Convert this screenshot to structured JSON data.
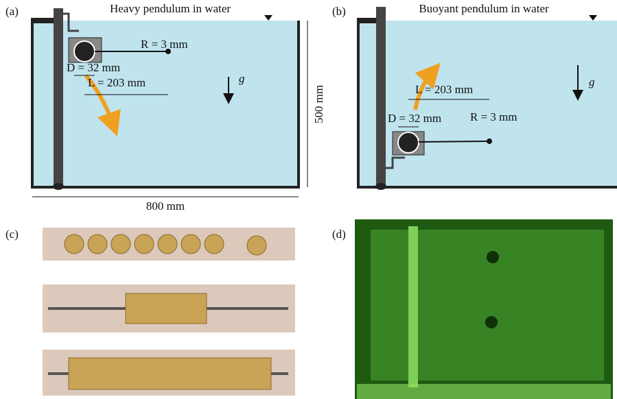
{
  "panels": {
    "a": {
      "label": "(a)",
      "title": "Heavy pendulum in water",
      "radius": "R = 3 mm",
      "diameter": "D = 32 mm",
      "length": "L = 203 mm",
      "gravity": "g",
      "height": "500 mm",
      "width": "800 mm"
    },
    "b": {
      "label": "(b)",
      "title": "Buoyant pendulum in water",
      "length": "L = 203 mm",
      "diameter": "D = 32 mm",
      "radius": "R = 3 mm",
      "gravity": "g"
    },
    "c": {
      "label": "(c)"
    },
    "d": {
      "label": "(d)"
    }
  }
}
